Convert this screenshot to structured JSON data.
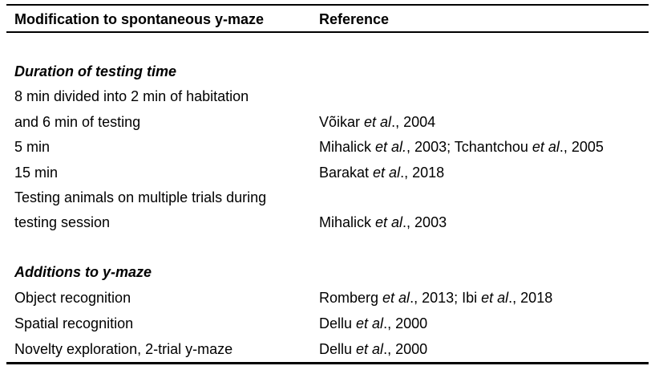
{
  "header": {
    "col1": "Modification to spontaneous y-maze",
    "col2": "Reference"
  },
  "sections": [
    {
      "title": "Duration of testing time",
      "rows": [
        {
          "line1": "8 min divided into 2 min of habitation",
          "line2": "and 6 min of testing",
          "ref": [
            {
              "name": "Võikar ",
              "etal": "et al",
              "tail": "., 2004"
            }
          ]
        },
        {
          "line1": "5 min",
          "ref": [
            {
              "name": "Mihalick ",
              "etal": "et al.",
              "tail": ", 2003; "
            },
            {
              "name": "Tchantchou ",
              "etal": "et al",
              "tail": "., 2005"
            }
          ]
        },
        {
          "line1": "15 min",
          "ref": [
            {
              "name": "Barakat ",
              "etal": "et al",
              "tail": "., 2018"
            }
          ]
        },
        {
          "line1": "Testing animals on multiple trials during",
          "line2": "testing session",
          "ref": [
            {
              "name": "Mihalick ",
              "etal": "et al",
              "tail": "., 2003"
            }
          ]
        }
      ]
    },
    {
      "title": "Additions to y-maze",
      "rows": [
        {
          "line1": "Object recognition",
          "ref": [
            {
              "name": "Romberg ",
              "etal": "et al",
              "tail": "., 2013; "
            },
            {
              "name": "Ibi ",
              "etal": "et al",
              "tail": "., 2018"
            }
          ]
        },
        {
          "line1": "Spatial recognition",
          "ref": [
            {
              "name": "Dellu ",
              "etal": "et al",
              "tail": "., 2000"
            }
          ]
        },
        {
          "line1": "Novelty exploration, 2-trial y-maze",
          "ref": [
            {
              "name": "Dellu ",
              "etal": "et al",
              "tail": "., 2000"
            }
          ]
        }
      ]
    }
  ]
}
